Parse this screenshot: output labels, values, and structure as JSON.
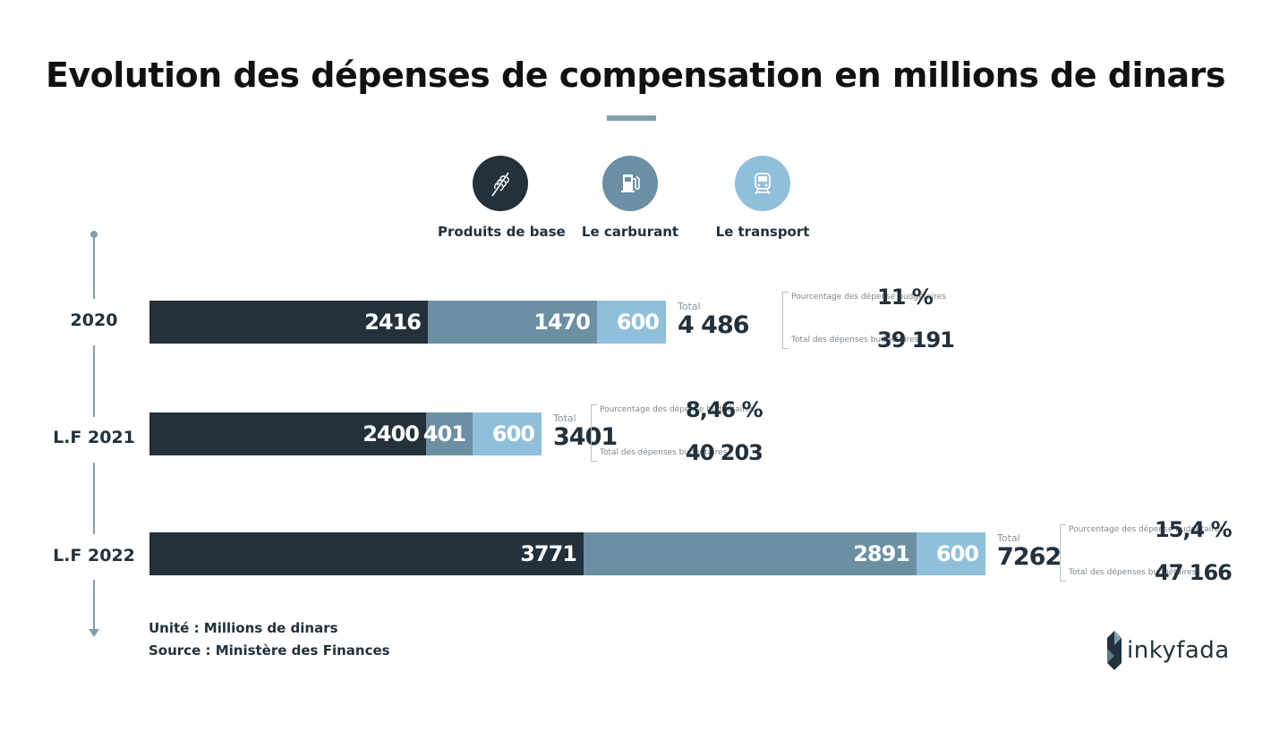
{
  "title": "Evolution des dépenses de compensation en millions de dinars",
  "colors": {
    "produits": "#22313c",
    "carburant": "#6b8fa3",
    "transport": "#8fbfda",
    "accent": "#7f9fb0"
  },
  "legend": [
    {
      "label": "Produits de base",
      "icon": "wheat-icon"
    },
    {
      "label": "Le carburant",
      "icon": "fuel-pump-icon"
    },
    {
      "label": "Le transport",
      "icon": "train-icon"
    }
  ],
  "chart_data": {
    "type": "bar",
    "orientation": "horizontal",
    "stacked": true,
    "categories": [
      "2020",
      "L.F 2021",
      "L.F 2022"
    ],
    "series": [
      {
        "name": "Produits de base",
        "values": [
          2416,
          2400,
          3771
        ]
      },
      {
        "name": "Le carburant",
        "values": [
          1470,
          401,
          2891
        ]
      },
      {
        "name": "Le transport",
        "values": [
          600,
          600,
          600
        ]
      }
    ],
    "totals": [
      {
        "caption": "Total",
        "value": "4 486"
      },
      {
        "caption": "Total",
        "value": "3401"
      },
      {
        "caption": "Total",
        "value": "7262"
      }
    ],
    "stats": [
      {
        "pct_label": "Pourcentage des dépense budgétaires",
        "pct_value": "11 %",
        "budget_label": "Total des dépenses budgétaires",
        "budget_value": "39 191"
      },
      {
        "pct_label": "Pourcentage des dépense budgétaires",
        "pct_value": "8,46 %",
        "budget_label": "Total des dépenses budgétaires",
        "budget_value": "40 203"
      },
      {
        "pct_label": "Pourcentage des dépense budgétaires",
        "pct_value": "15,4 %",
        "budget_label": "Total des dépenses budgétaires",
        "budget_value": "47 166"
      }
    ]
  },
  "notes": {
    "unit": "Unité : Millions de dinars",
    "source": "Source : Ministère des Finances"
  },
  "brand": "inkyfada"
}
